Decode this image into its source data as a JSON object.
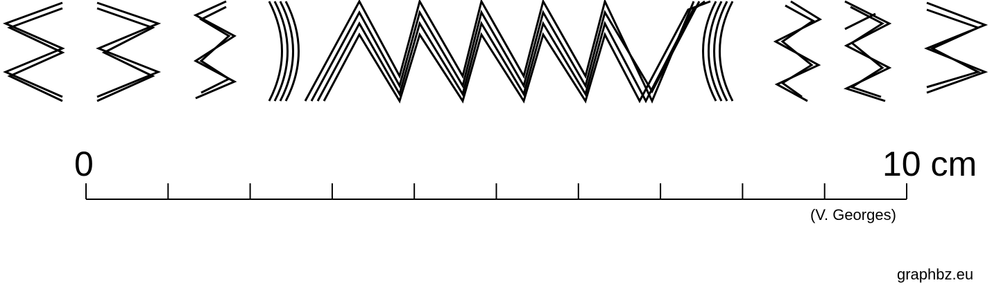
{
  "scale": {
    "start_label": "0",
    "end_label": "10 cm",
    "divisions": 10
  },
  "credit": "(V. Georges)",
  "site": "graphbz.eu",
  "colors": {
    "ink": "#000000",
    "background": "#ffffff"
  }
}
